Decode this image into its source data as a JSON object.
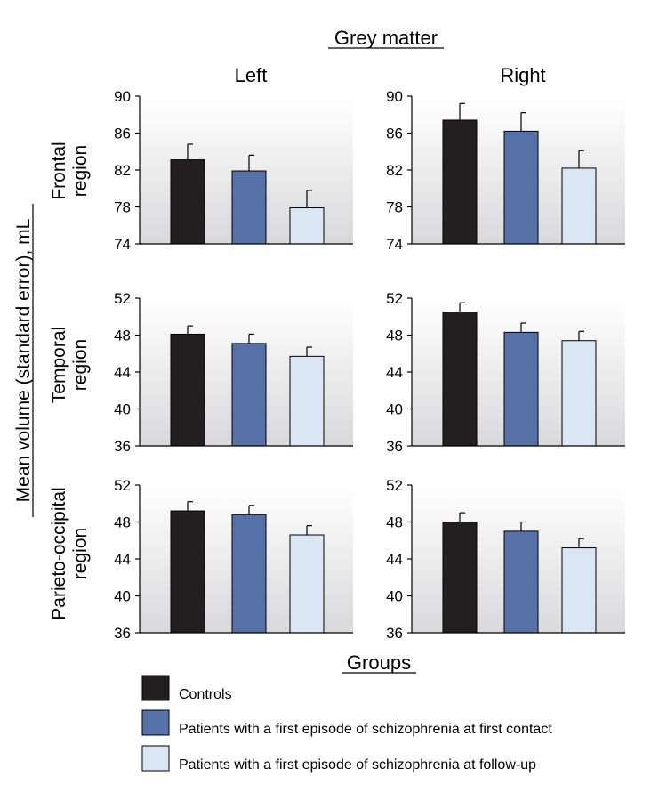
{
  "figure": {
    "title": "Grey matter",
    "y_axis_label": "Mean volume (standard error), mL",
    "column_labels": [
      "Left",
      "Right"
    ],
    "row_labels": [
      [
        "Frontal",
        "region"
      ],
      [
        "Temporal",
        "region"
      ],
      [
        "Parieto-occipital",
        "region"
      ]
    ],
    "legend_title": "Groups",
    "legend": [
      {
        "label": "Controls",
        "color": "#231f20"
      },
      {
        "label": "Patients with a first episode of schizophrenia at first contact",
        "color": "#5670a8"
      },
      {
        "label": "Patients with a first episode of schizophrenia at follow-up",
        "color": "#dae6f4"
      }
    ]
  },
  "chart_data": [
    {
      "type": "bar",
      "region": "Frontal region",
      "side": "Left",
      "categories": [
        "Controls",
        "First contact",
        "Follow-up"
      ],
      "values": [
        83.1,
        81.9,
        77.9
      ],
      "errors": [
        1.7,
        1.7,
        1.9
      ],
      "ylim": [
        74,
        90
      ],
      "yticks": [
        "74",
        "78",
        "82",
        "86",
        "90"
      ]
    },
    {
      "type": "bar",
      "region": "Frontal region",
      "side": "Right",
      "categories": [
        "Controls",
        "First contact",
        "Follow-up"
      ],
      "values": [
        87.4,
        86.2,
        82.2
      ],
      "errors": [
        1.8,
        2.0,
        1.9
      ],
      "ylim": [
        74,
        90
      ],
      "yticks": [
        "74",
        "78",
        "82",
        "86",
        "90"
      ]
    },
    {
      "type": "bar",
      "region": "Temporal region",
      "side": "Left",
      "categories": [
        "Controls",
        "First contact",
        "Follow-up"
      ],
      "values": [
        48.1,
        47.1,
        45.7
      ],
      "errors": [
        0.9,
        1.0,
        1.0
      ],
      "ylim": [
        36,
        52
      ],
      "yticks": [
        "36",
        "40",
        "44",
        "48",
        "52"
      ]
    },
    {
      "type": "bar",
      "region": "Temporal region",
      "side": "Right",
      "categories": [
        "Controls",
        "First contact",
        "Follow-up"
      ],
      "values": [
        50.5,
        48.3,
        47.4
      ],
      "errors": [
        1.0,
        1.0,
        1.0
      ],
      "ylim": [
        36,
        52
      ],
      "yticks": [
        "36",
        "40",
        "44",
        "48",
        "52"
      ]
    },
    {
      "type": "bar",
      "region": "Parieto-occipital region",
      "side": "Left",
      "categories": [
        "Controls",
        "First contact",
        "Follow-up"
      ],
      "values": [
        49.2,
        48.8,
        46.6
      ],
      "errors": [
        1.0,
        1.0,
        1.0
      ],
      "ylim": [
        36,
        52
      ],
      "yticks": [
        "36",
        "40",
        "44",
        "48",
        "52"
      ]
    },
    {
      "type": "bar",
      "region": "Parieto-occipital region",
      "side": "Right",
      "categories": [
        "Controls",
        "First contact",
        "Follow-up"
      ],
      "values": [
        48.0,
        47.0,
        45.2
      ],
      "errors": [
        1.0,
        1.0,
        1.0
      ],
      "ylim": [
        36,
        52
      ],
      "yticks": [
        "36",
        "40",
        "44",
        "48",
        "52"
      ]
    }
  ]
}
